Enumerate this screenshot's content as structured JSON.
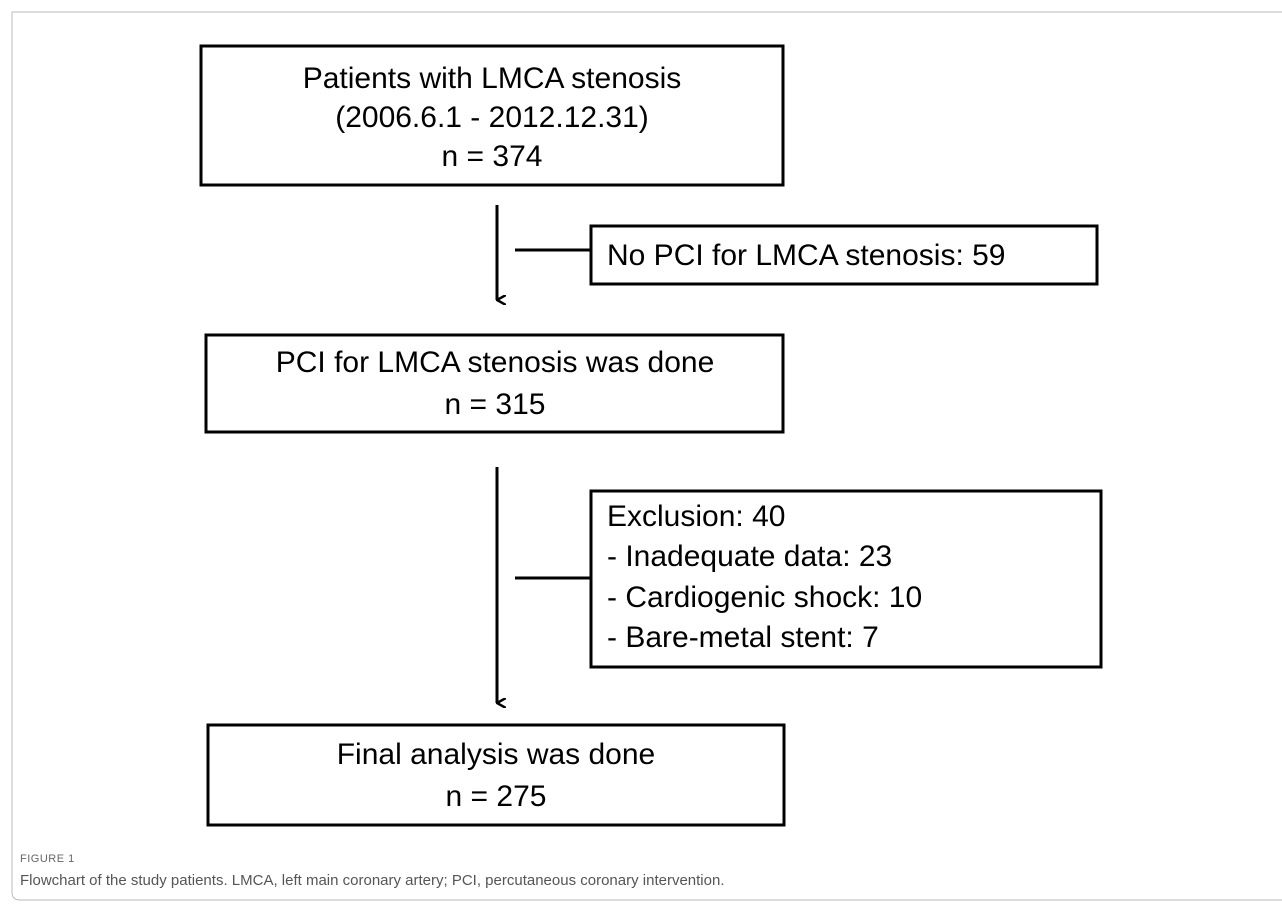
{
  "nodes": [
    {
      "lines": [
        "Patients with LMCA stenosis",
        "(2006.6.1 - 2012.12.31)",
        "n = 374"
      ]
    },
    {
      "lines": [
        "No PCI for LMCA stenosis: 59"
      ]
    },
    {
      "lines": [
        "PCI for LMCA stenosis was done",
        "n = 315"
      ]
    },
    {
      "lines": [
        "Exclusion: 40",
        "- Inadequate data: 23",
        "- Cardiogenic shock: 10",
        "- Bare-metal stent: 7"
      ]
    },
    {
      "lines": [
        "Final analysis was done",
        "n = 275"
      ]
    }
  ],
  "caption": {
    "label": "FIGURE 1",
    "text": "Flowchart of the study patients. LMCA, left main coronary artery; PCI, percutaneous coronary intervention."
  }
}
